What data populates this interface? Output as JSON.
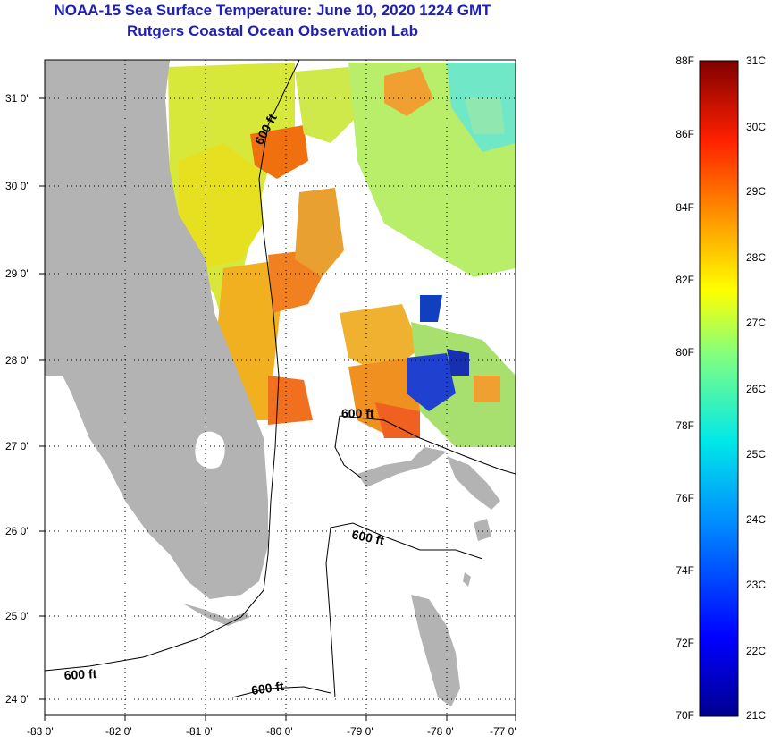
{
  "header": {
    "title": "NOAA-15 Sea Surface Temperature:  June 10, 2020 1224 GMT",
    "subtitle": "Rutgers Coastal Ocean Observation Lab"
  },
  "map": {
    "lon_labels": [
      "-83 0'",
      "-82 0'",
      "-81 0'",
      "-80 0'",
      "-79 0'",
      "-78 0'",
      "-77 0'"
    ],
    "lat_labels": [
      "31 0'",
      "30 0'",
      "29 0'",
      "28 0'",
      "27 0'",
      "26 0'",
      "25 0'",
      "24 0'"
    ],
    "contour_label": "600 ft",
    "land_color": "#b3b3b3"
  },
  "colorbar": {
    "fahrenheit_labels": [
      "88F",
      "86F",
      "84F",
      "82F",
      "80F",
      "78F",
      "76F",
      "74F",
      "72F",
      "70F"
    ],
    "celsius_labels": [
      "31C",
      "30C",
      "29C",
      "28C",
      "27C",
      "26C",
      "25C",
      "24C",
      "23C",
      "22C",
      "21C"
    ],
    "range_celsius": [
      21,
      31
    ],
    "range_fahrenheit": [
      70,
      88
    ]
  }
}
